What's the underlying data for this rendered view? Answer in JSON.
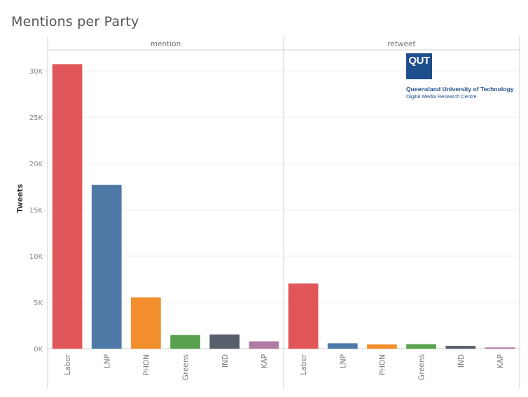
{
  "chart_data": {
    "type": "bar",
    "title": "Mentions per Party",
    "xlabel": "",
    "ylabel": "Tweets",
    "ylim": [
      0,
      32000
    ],
    "yticks": [
      0,
      5000,
      10000,
      15000,
      20000,
      25000,
      30000
    ],
    "ytick_labels": [
      "0K",
      "5K",
      "10K",
      "15K",
      "20K",
      "25K",
      "30K"
    ],
    "grid": true,
    "categories": [
      "Labor",
      "LNP",
      "PHON",
      "Greens",
      "IND",
      "KAP"
    ],
    "colors": [
      "#e15759",
      "#4e79a7",
      "#f28e2b",
      "#59a14f",
      "#585f6c",
      "#b07aa1"
    ],
    "panels": [
      {
        "name": "mention",
        "values": [
          30700,
          17650,
          5500,
          1440,
          1500,
          760
        ]
      },
      {
        "name": "retweet",
        "values": [
          7000,
          550,
          420,
          450,
          270,
          100
        ]
      }
    ]
  },
  "logo": {
    "mark": "QUT",
    "line1": "Queensland University of Technology",
    "line2": "Digital Media Research Centre"
  }
}
